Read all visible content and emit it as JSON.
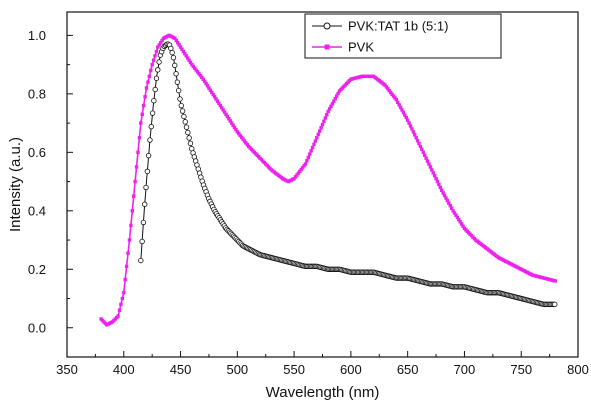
{
  "chart_data": {
    "type": "line",
    "title": "",
    "xlabel": "Wavelength (nm)",
    "ylabel": "Intensity (a.u.)",
    "xlim": [
      350,
      800
    ],
    "ylim": [
      -0.1,
      1.08
    ],
    "x_ticks": [
      350,
      400,
      450,
      500,
      550,
      600,
      650,
      700,
      750,
      800
    ],
    "x_tick_labels": [
      "350",
      "400",
      "450",
      "500",
      "550",
      "600",
      "650",
      "700",
      "750",
      "800"
    ],
    "y_ticks": [
      0.0,
      0.2,
      0.4,
      0.6,
      0.8,
      1.0
    ],
    "y_tick_labels": [
      "0.0",
      "0.2",
      "0.4",
      "0.6",
      "0.8",
      "1.0"
    ],
    "grid": false,
    "legend_position": "top-right",
    "series": [
      {
        "name": "PVK:TAT 1b (5:1)",
        "color": "#111111",
        "marker": "open-circle",
        "x": [
          415,
          418,
          420,
          423,
          426,
          429,
          432,
          435,
          438,
          440,
          442,
          444,
          446,
          448,
          450,
          455,
          460,
          465,
          470,
          475,
          480,
          485,
          490,
          495,
          500,
          505,
          510,
          515,
          520,
          530,
          540,
          550,
          560,
          570,
          580,
          590,
          600,
          610,
          620,
          630,
          640,
          650,
          660,
          670,
          680,
          690,
          700,
          710,
          720,
          730,
          740,
          750,
          760,
          770,
          780
        ],
        "y": [
          0.23,
          0.4,
          0.5,
          0.64,
          0.76,
          0.86,
          0.93,
          0.96,
          0.97,
          0.97,
          0.95,
          0.92,
          0.87,
          0.82,
          0.77,
          0.69,
          0.61,
          0.55,
          0.49,
          0.44,
          0.4,
          0.37,
          0.34,
          0.32,
          0.3,
          0.28,
          0.27,
          0.26,
          0.25,
          0.24,
          0.23,
          0.22,
          0.21,
          0.21,
          0.2,
          0.2,
          0.19,
          0.19,
          0.19,
          0.18,
          0.17,
          0.17,
          0.16,
          0.15,
          0.15,
          0.14,
          0.14,
          0.13,
          0.12,
          0.12,
          0.11,
          0.1,
          0.09,
          0.08,
          0.08
        ]
      },
      {
        "name": "PVK",
        "color": "#ee22ee",
        "marker": "filled-square",
        "x": [
          380,
          385,
          390,
          395,
          400,
          405,
          410,
          415,
          420,
          425,
          430,
          435,
          440,
          445,
          450,
          460,
          470,
          480,
          490,
          500,
          510,
          520,
          530,
          540,
          545,
          550,
          560,
          570,
          580,
          590,
          600,
          610,
          620,
          630,
          640,
          650,
          660,
          670,
          680,
          690,
          700,
          710,
          720,
          730,
          740,
          750,
          760,
          770,
          780
        ],
        "y": [
          0.03,
          0.01,
          0.02,
          0.04,
          0.12,
          0.3,
          0.5,
          0.7,
          0.82,
          0.9,
          0.96,
          0.99,
          1.0,
          0.99,
          0.96,
          0.9,
          0.85,
          0.79,
          0.73,
          0.67,
          0.62,
          0.58,
          0.54,
          0.51,
          0.5,
          0.51,
          0.56,
          0.65,
          0.74,
          0.81,
          0.85,
          0.86,
          0.86,
          0.83,
          0.78,
          0.71,
          0.63,
          0.55,
          0.47,
          0.4,
          0.34,
          0.3,
          0.27,
          0.24,
          0.22,
          0.2,
          0.18,
          0.17,
          0.16
        ]
      }
    ]
  }
}
